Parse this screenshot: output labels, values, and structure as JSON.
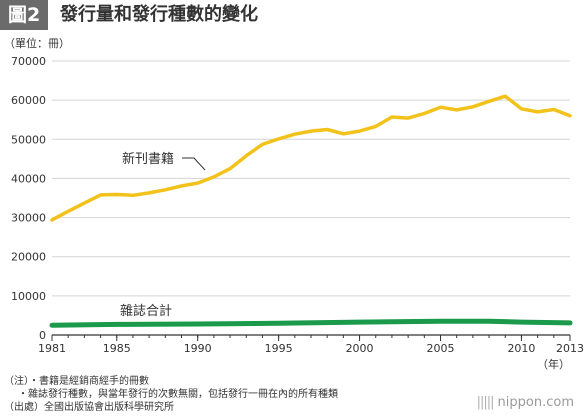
{
  "header": {
    "figure_label": "圖2",
    "title": "發行量和發行種數的變化"
  },
  "unit_label": "（單位：冊）",
  "colors": {
    "header_bg": "#6b6b6b",
    "books_line": "#f2c21b",
    "magazines_line": "#1a9a4a",
    "grid": "#d4d4d4",
    "axis": "#333333"
  },
  "chart_data": {
    "type": "line",
    "x_unit": "（年）",
    "ylim": [
      0,
      70000
    ],
    "yticks": [
      0,
      10000,
      20000,
      30000,
      40000,
      50000,
      60000,
      70000
    ],
    "xticks": [
      1981,
      1985,
      1990,
      1995,
      2000,
      2005,
      2010,
      2013
    ],
    "xlim": [
      1981,
      2013
    ],
    "grid": true,
    "series": [
      {
        "name": "新刊書籍",
        "color": "#f2c21b",
        "x": [
          1981,
          1982,
          1983,
          1984,
          1985,
          1986,
          1987,
          1988,
          1989,
          1990,
          1991,
          1992,
          1993,
          1994,
          1995,
          1996,
          1997,
          1998,
          1999,
          2000,
          2001,
          2002,
          2003,
          2004,
          2005,
          2006,
          2007,
          2008,
          2009,
          2010,
          2011,
          2012,
          2013
        ],
        "values": [
          29400,
          31600,
          33700,
          35800,
          35900,
          35700,
          36300,
          37100,
          38100,
          38800,
          40400,
          42500,
          45800,
          48700,
          50100,
          51300,
          52100,
          52500,
          51400,
          52100,
          53300,
          55700,
          55400,
          56600,
          58200,
          57500,
          58300,
          59700,
          61000,
          57800,
          57000,
          57600,
          56000
        ]
      },
      {
        "name": "雜誌合計",
        "color": "#1a9a4a",
        "x": [
          1981,
          1985,
          1990,
          1995,
          2000,
          2005,
          2008,
          2010,
          2013
        ],
        "values": [
          2500,
          2700,
          2800,
          3000,
          3300,
          3500,
          3500,
          3300,
          3100
        ]
      }
    ]
  },
  "notes": [
    "（注）・書籍是經銷商經手的冊數",
    "・雜誌發行種數，與當年發行的次數無關，包括發行一冊在內的所有種類",
    "（出處）全國出版協會出版科學研究所"
  ],
  "brand": {
    "mark": "|||||",
    "name": "nippon.com"
  }
}
